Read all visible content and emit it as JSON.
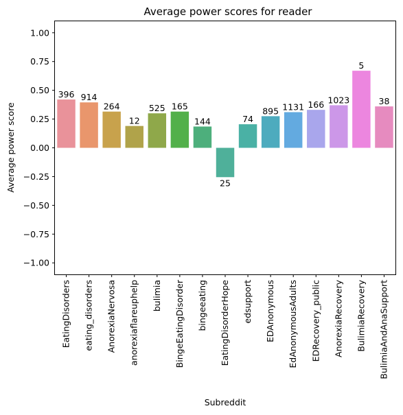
{
  "chart_data": {
    "type": "bar",
    "title": "Average power scores for reader",
    "xlabel": "Subreddit",
    "ylabel": "Average power score",
    "ylim": [
      -1.1,
      1.1
    ],
    "yticks": [
      1.0,
      0.75,
      0.5,
      0.25,
      0.0,
      -0.25,
      -0.5,
      -0.75,
      -1.0
    ],
    "ytick_labels": [
      "1.00",
      "0.75",
      "0.50",
      "0.25",
      "0.00",
      "−0.25",
      "−0.50",
      "−0.75",
      "−1.00"
    ],
    "grid": false,
    "categories": [
      "EatingDisorders",
      "eating_disorders",
      "AnorexiaNervosa",
      "anorexiaflareuphelp",
      "bulimia",
      "BingeEatingDisorder",
      "bingeeating",
      "EatingDisorderHope",
      "edsupport",
      "EDAnonymous",
      "EdAnonymousAdults",
      "EDRecovery_public",
      "AnorexiaRecovery",
      "BulimiaRecovery",
      "BulimiaAndAnaSupport"
    ],
    "values": [
      0.42,
      0.395,
      0.315,
      0.19,
      0.3,
      0.315,
      0.185,
      -0.255,
      0.205,
      0.275,
      0.31,
      0.33,
      0.37,
      0.67,
      0.36
    ],
    "bar_labels": [
      "396",
      "914",
      "264",
      "12",
      "525",
      "165",
      "144",
      "25",
      "74",
      "895",
      "1131",
      "166",
      "1023",
      "5",
      "38"
    ],
    "colors": [
      "#E9929A",
      "#E9966C",
      "#C8A24C",
      "#B0A34A",
      "#8FA84A",
      "#52B04A",
      "#4DAF7C",
      "#4FB09A",
      "#4AB1A5",
      "#4DABBE",
      "#63AAE0",
      "#A9A6EC",
      "#CC97E8",
      "#EC86DF",
      "#E68BBF"
    ]
  }
}
